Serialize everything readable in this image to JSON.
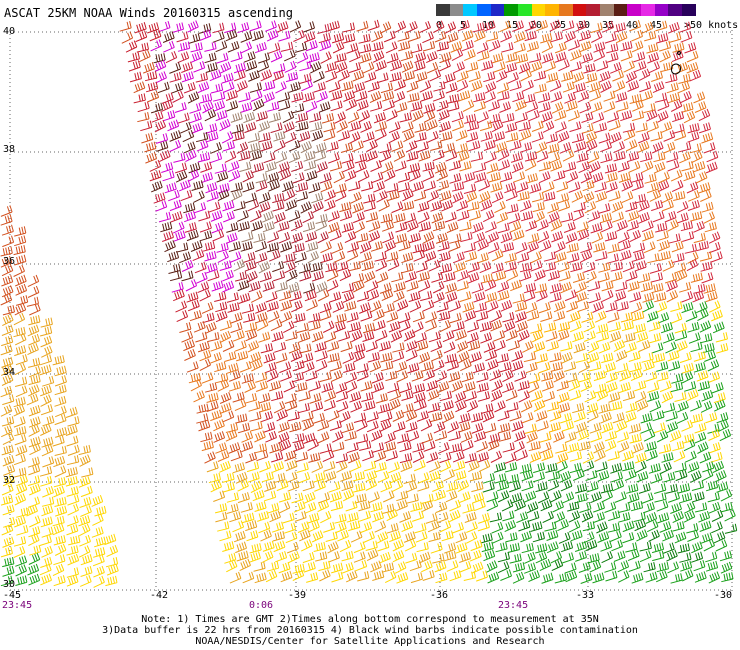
{
  "title": "ASCAT 25KM NOAA Winds 20160315 ascending",
  "legend": {
    "colors": [
      "#3a3a3a",
      "#8c8c8c",
      "#00c8ff",
      "#0064ff",
      "#1e28c8",
      "#009a00",
      "#28e628",
      "#ffd700",
      "#ffb400",
      "#e6781e",
      "#d20f0f",
      "#b41e32",
      "#a0826e",
      "#5a1e14",
      "#c800c8",
      "#e628e6",
      "#9600c8",
      "#500082",
      "#28005a"
    ],
    "labels": [
      "0",
      "5",
      "10",
      "15",
      "20",
      "25",
      "30",
      "35",
      "40",
      "45",
      ">50 knots"
    ]
  },
  "map": {
    "lat_labels": [
      "40",
      "38",
      "36",
      "34",
      "32",
      "30"
    ],
    "lon_labels": [
      "-45",
      "-42",
      "-39",
      "-36",
      "-33",
      "-30"
    ],
    "time_labels": [
      "23:45",
      "0:06",
      "23:45"
    ]
  },
  "notes": [
    "Note: 1) Times are GMT 2)Times along bottom correspond to measurement at 35N",
    "3)Data buffer is 22 hrs from 20160315 4) Black wind barbs indicate possible contamination",
    "NOAA/NESDIS/Center for Satellite Applications and Research"
  ]
}
